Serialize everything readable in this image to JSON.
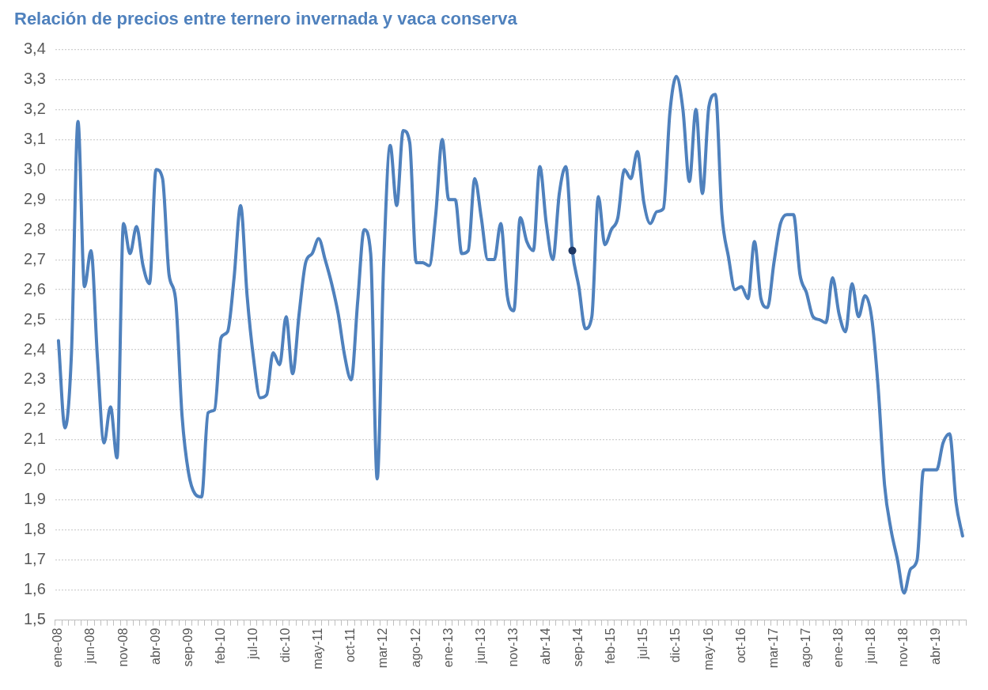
{
  "chart_data": {
    "type": "line",
    "title": "Relación de precios entre ternero invernada y vaca conserva",
    "categories": [
      "ene-08",
      null,
      null,
      null,
      null,
      "jun-08",
      null,
      null,
      null,
      null,
      "nov-08",
      null,
      null,
      null,
      null,
      "abr-09",
      null,
      null,
      null,
      null,
      "sep-09",
      null,
      null,
      null,
      null,
      "feb-10",
      null,
      null,
      null,
      null,
      "jul-10",
      null,
      null,
      null,
      null,
      "dic-10",
      null,
      null,
      null,
      null,
      "may-11",
      null,
      null,
      null,
      null,
      "oct-11",
      null,
      null,
      null,
      null,
      "mar-12",
      null,
      null,
      null,
      null,
      "ago-12",
      null,
      null,
      null,
      null,
      "ene-13",
      null,
      null,
      null,
      null,
      "jun-13",
      null,
      null,
      null,
      null,
      "nov-13",
      null,
      null,
      null,
      null,
      "abr-14",
      null,
      null,
      null,
      null,
      "sep-14",
      null,
      null,
      null,
      null,
      "feb-15",
      null,
      null,
      null,
      null,
      "jul-15",
      null,
      null,
      null,
      null,
      "dic-15",
      null,
      null,
      null,
      null,
      "may-16",
      null,
      null,
      null,
      null,
      "oct-16",
      null,
      null,
      null,
      null,
      "mar-17",
      null,
      null,
      null,
      null,
      "ago-17",
      null,
      null,
      null,
      null,
      "ene-18",
      null,
      null,
      null,
      null,
      "jun-18",
      null,
      null,
      null,
      null,
      "nov-18",
      null,
      null,
      null,
      null,
      "abr-19",
      null,
      null,
      null,
      null
    ],
    "series": [
      {
        "color": "#4f81bd",
        "values": [
          2.43,
          2.14,
          2.39,
          3.16,
          2.61,
          2.73,
          2.37,
          2.09,
          2.21,
          2.04,
          2.82,
          2.72,
          2.81,
          2.68,
          2.62,
          3.0,
          2.97,
          2.65,
          2.57,
          2.18,
          1.99,
          1.92,
          1.91,
          2.19,
          2.2,
          2.44,
          2.46,
          2.64,
          2.88,
          2.58,
          2.37,
          2.24,
          2.25,
          2.39,
          2.35,
          2.51,
          2.32,
          2.52,
          2.69,
          2.72,
          2.77,
          2.7,
          2.62,
          2.52,
          2.38,
          2.3,
          2.56,
          2.8,
          2.72,
          1.97,
          2.69,
          3.08,
          2.88,
          3.13,
          3.09,
          2.69,
          2.69,
          2.68,
          2.85,
          3.1,
          2.9,
          2.9,
          2.72,
          2.73,
          2.97,
          2.84,
          2.7,
          2.7,
          2.82,
          2.58,
          2.53,
          2.84,
          2.76,
          2.73,
          3.01,
          2.82,
          2.7,
          2.92,
          3.01,
          2.73,
          2.61,
          2.47,
          2.51,
          2.91,
          2.75,
          2.8,
          2.84,
          3.0,
          2.97,
          3.06,
          2.89,
          2.82,
          2.86,
          2.87,
          3.19,
          3.31,
          3.2,
          2.96,
          3.2,
          2.92,
          3.21,
          3.25,
          2.85,
          2.71,
          2.6,
          2.61,
          2.57,
          2.76,
          2.57,
          2.54,
          2.69,
          2.82,
          2.85,
          2.85,
          2.65,
          2.59,
          2.51,
          2.5,
          2.49,
          2.64,
          2.52,
          2.46,
          2.62,
          2.51,
          2.58,
          2.51,
          2.28,
          1.95,
          1.8,
          1.7,
          1.59,
          1.67,
          1.7,
          2.0,
          2.0,
          2.0,
          2.09,
          2.12,
          1.89,
          1.78
        ]
      },
      {
        "type": "scatter",
        "marker": "circle",
        "color": "#1f3864",
        "values": [
          null,
          null,
          null,
          null,
          null,
          null,
          null,
          null,
          null,
          null,
          null,
          null,
          null,
          null,
          null,
          null,
          null,
          null,
          null,
          null,
          null,
          null,
          null,
          null,
          null,
          null,
          null,
          null,
          null,
          null,
          null,
          null,
          null,
          null,
          null,
          null,
          null,
          null,
          null,
          null,
          null,
          null,
          null,
          null,
          null,
          null,
          null,
          null,
          null,
          null,
          null,
          null,
          null,
          null,
          null,
          null,
          null,
          null,
          null,
          null,
          null,
          null,
          null,
          null,
          null,
          null,
          null,
          null,
          null,
          null,
          null,
          null,
          null,
          null,
          null,
          null,
          null,
          null,
          null,
          2.73,
          null,
          null,
          null,
          null,
          null,
          null,
          null,
          null,
          null,
          null,
          null,
          null,
          null,
          null,
          null,
          null,
          null,
          null,
          null,
          null,
          null,
          null,
          null,
          null,
          null,
          null,
          null,
          null,
          null,
          null,
          null,
          null,
          null,
          null,
          null,
          null,
          null,
          null,
          null,
          null,
          null,
          null,
          null,
          null,
          null,
          null,
          null,
          null,
          null,
          null,
          null,
          null,
          null,
          null,
          null,
          null,
          null,
          null,
          null,
          null
        ]
      }
    ],
    "ylim": [
      1.5,
      3.4
    ],
    "yticks": [
      {
        "value": 1.5,
        "label": "1,5"
      },
      {
        "value": 1.6,
        "label": "1,6"
      },
      {
        "value": 1.7,
        "label": "1,7"
      },
      {
        "value": 1.8,
        "label": "1,8"
      },
      {
        "value": 1.9,
        "label": "1,9"
      },
      {
        "value": 2.0,
        "label": "2,0"
      },
      {
        "value": 2.1,
        "label": "2,1"
      },
      {
        "value": 2.2,
        "label": "2,2"
      },
      {
        "value": 2.3,
        "label": "2,3"
      },
      {
        "value": 2.4,
        "label": "2,4"
      },
      {
        "value": 2.5,
        "label": "2,5"
      },
      {
        "value": 2.6,
        "label": "2,6"
      },
      {
        "value": 2.7,
        "label": "2,7"
      },
      {
        "value": 2.8,
        "label": "2,8"
      },
      {
        "value": 2.9,
        "label": "2,9"
      },
      {
        "value": 3.0,
        "label": "3,0"
      },
      {
        "value": 3.1,
        "label": "3,1"
      },
      {
        "value": 3.2,
        "label": "3,2"
      },
      {
        "value": 3.3,
        "label": "3,3"
      },
      {
        "value": 3.4,
        "label": "3,4"
      }
    ],
    "grid": "y"
  }
}
